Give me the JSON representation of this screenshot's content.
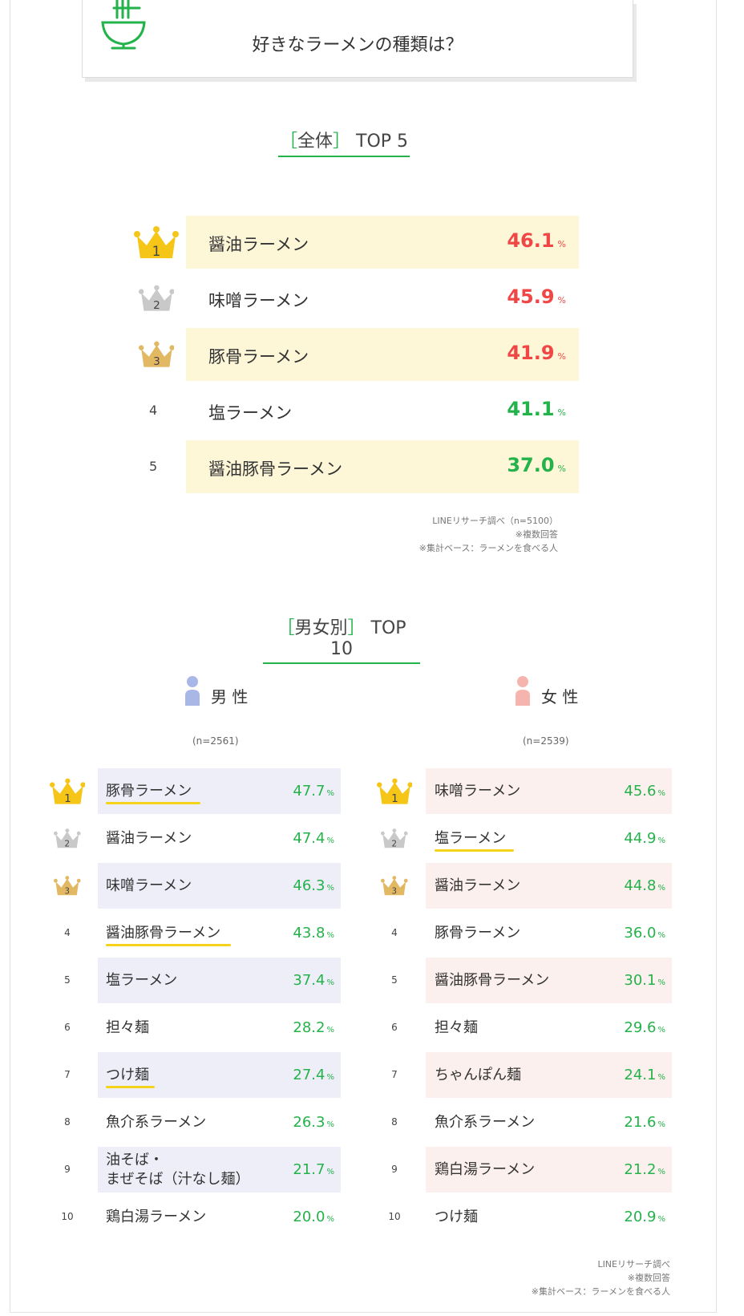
{
  "header": {
    "title": "好きなラーメンの種類は？"
  },
  "colors": {
    "green": "#24b24a",
    "red": "#f04646",
    "gold": "#f5c518",
    "silver": "#c9c9c9",
    "bronze": "#e2b862",
    "overall_bg": "#fdf7d8",
    "male_bg": "#eeeef9",
    "female_bg": "#fcf0ee"
  },
  "overall": {
    "heading": {
      "open": "［",
      "label": "全体",
      "close": "］",
      "suffix": "TOP 5"
    },
    "unit": "%",
    "notes": [
      "LINEリサーチ調べ（n=5100）",
      "※複数回答",
      "※集計ベース：ラーメンを食べる人"
    ]
  },
  "gender": {
    "heading": {
      "open": "［",
      "label": "男女別",
      "close": "］",
      "suffix": "TOP 10"
    },
    "male": {
      "label": "男 性",
      "n": "(n=2561)"
    },
    "female": {
      "label": "女 性",
      "n": "(n=2539)"
    },
    "unit": "%",
    "notes": [
      "LINEリサーチ調べ",
      "※複数回答",
      "※集計ベース：ラーメンを食べる人"
    ]
  },
  "chart_data": [
    {
      "type": "table",
      "title": "［全体］TOP 5",
      "ranks": [
        "1",
        "2",
        "3",
        "4",
        "5"
      ],
      "categories": [
        "醤油ラーメン",
        "味噌ラーメン",
        "豚骨ラーメン",
        "塩ラーメン",
        "醤油豚骨ラーメン"
      ],
      "values": [
        46.1,
        45.9,
        41.9,
        41.1,
        37.0
      ],
      "labels": [
        "46.1",
        "45.9",
        "41.9",
        "41.1",
        "37.0"
      ]
    },
    {
      "type": "table",
      "title": "男 性",
      "ranks": [
        "1",
        "2",
        "3",
        "4",
        "5",
        "6",
        "7",
        "8",
        "9",
        "10"
      ],
      "categories": [
        "豚骨ラーメン",
        "醤油ラーメン",
        "味噌ラーメン",
        "醤油豚骨ラーメン",
        "塩ラーメン",
        "担々麺",
        "つけ麺",
        "魚介系ラーメン",
        "油そば・\nまぜそば（汁なし麺）",
        "鶏白湯ラーメン"
      ],
      "values": [
        47.7,
        47.4,
        46.3,
        43.8,
        37.4,
        28.2,
        27.4,
        26.3,
        21.7,
        20.0
      ],
      "labels": [
        "47.7",
        "47.4",
        "46.3",
        "43.8",
        "37.4",
        "28.2",
        "27.4",
        "26.3",
        "21.7",
        "20.0"
      ],
      "underlined": [
        true,
        false,
        false,
        true,
        false,
        false,
        true,
        false,
        false,
        false
      ]
    },
    {
      "type": "table",
      "title": "女 性",
      "ranks": [
        "1",
        "2",
        "3",
        "4",
        "5",
        "6",
        "7",
        "8",
        "9",
        "10"
      ],
      "categories": [
        "味噌ラーメン",
        "塩ラーメン",
        "醤油ラーメン",
        "豚骨ラーメン",
        "醤油豚骨ラーメン",
        "担々麺",
        "ちゃんぽん麺",
        "魚介系ラーメン",
        "鶏白湯ラーメン",
        "つけ麺"
      ],
      "values": [
        45.6,
        44.9,
        44.8,
        36.0,
        30.1,
        29.6,
        24.1,
        21.6,
        21.2,
        20.9
      ],
      "labels": [
        "45.6",
        "44.9",
        "44.8",
        "36.0",
        "30.1",
        "29.6",
        "24.1",
        "21.6",
        "21.2",
        "20.9"
      ],
      "underlined": [
        false,
        true,
        false,
        false,
        false,
        false,
        false,
        false,
        false,
        false
      ]
    }
  ]
}
